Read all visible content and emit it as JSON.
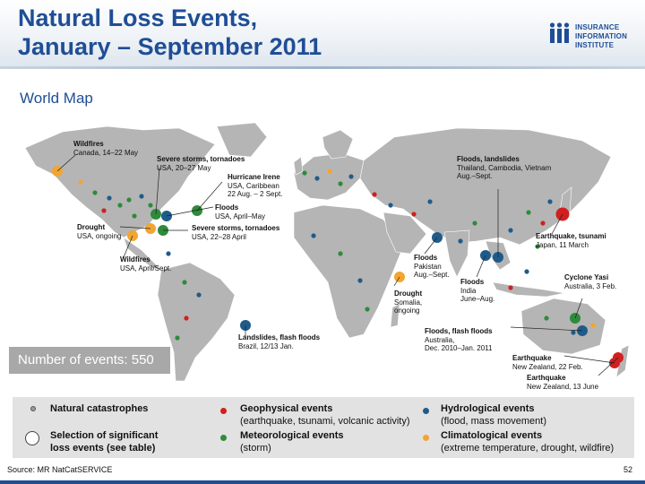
{
  "slide": {
    "title_line1": "Natural Loss Events,",
    "title_line2": "January – September 2011",
    "subtitle": "World Map",
    "logo": {
      "line1": "INSURANCE",
      "line2": "INFORMATION",
      "line3": "INSTITUTE",
      "mark": "iii"
    },
    "events_count": "Number of events: 550",
    "source": "Source: MR NatCatSERVICE",
    "page_number": "52"
  },
  "colors": {
    "title": "#1f4e96",
    "land": "#b5b5b5",
    "geophysical": "#d21f1f",
    "meteorological": "#2e8b3a",
    "hydrological": "#1f5b8a",
    "climatological": "#f2a531"
  },
  "callouts": [
    {
      "title": "Wildfires",
      "detail": "Canada, 14–22 May"
    },
    {
      "title": "Severe storms, tornadoes",
      "detail": "USA, 20–27 May"
    },
    {
      "title": "Hurricane Irene",
      "detail": "USA, Caribbean",
      "detail2": "22 Aug. – 2 Sept."
    },
    {
      "title": "Floods",
      "detail": "USA, April–May"
    },
    {
      "title": "Drought",
      "detail": "USA, ongoing"
    },
    {
      "title": "Severe storms, tornadoes",
      "detail": "USA, 22–28 April"
    },
    {
      "title": "Wildfires",
      "detail": "USA, April/Sept."
    },
    {
      "title": "Floods, landslides",
      "detail": "Thailand, Cambodia, Vietnam",
      "detail2": "Aug.–Sept."
    },
    {
      "title": "Earthquake, tsunami",
      "detail": "Japan, 11 March"
    },
    {
      "title": "Floods",
      "detail": "Pakistan",
      "detail2": "Aug.–Sept."
    },
    {
      "title": "Drought",
      "detail": "Somalia,",
      "detail2": "ongoing"
    },
    {
      "title": "Floods",
      "detail": "India",
      "detail2": "June–Aug."
    },
    {
      "title": "Cyclone Yasi",
      "detail": "Australia, 3 Feb."
    },
    {
      "title": "Floods, flash floods",
      "detail": "Australia,",
      "detail2": "Dec. 2010–Jan. 2011"
    },
    {
      "title": "Landslides, flash floods",
      "detail": "Brazil, 12/13 Jan."
    },
    {
      "title": "Earthquake",
      "detail": "New Zealand, 22 Feb."
    },
    {
      "title": "Earthquake",
      "detail": "New Zealand, 13 June"
    }
  ],
  "legend": {
    "natural": "Natural catastrophes",
    "selection": "Selection of significant",
    "selection2": "loss events (see table)",
    "geo": "Geophysical events",
    "geo_sub": "(earthquake, tsunami, volcanic activity)",
    "met": "Meteorological events",
    "met_sub": "(storm)",
    "hyd": "Hydrological events",
    "hyd_sub": "(flood, mass movement)",
    "cli": "Climatological events",
    "cli_sub": "(extreme temperature, drought, wildfire)"
  }
}
